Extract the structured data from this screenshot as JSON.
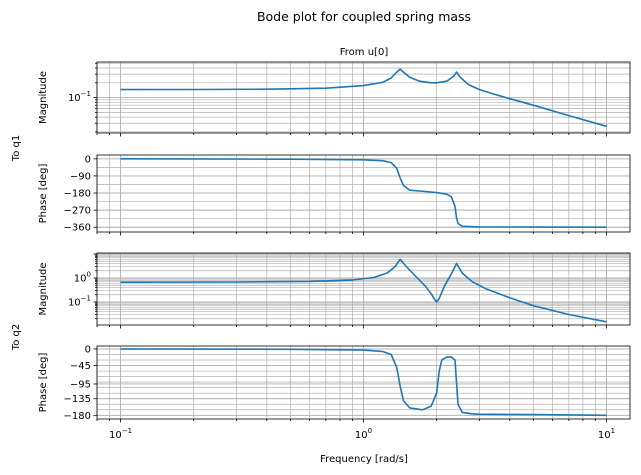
{
  "figure": {
    "title": "Bode plot for coupled spring mass",
    "column_title": "From u[0]",
    "row_labels": [
      "To q1",
      "To q2"
    ],
    "xlabel": "Frequency [rad/s]"
  },
  "colors": {
    "line": "#1f77b4",
    "grid": "#b0b0b0",
    "axes": "#000000"
  },
  "chart_data": [
    {
      "type": "line",
      "panel": "magnitude",
      "output": "To q1",
      "ylabel": "Magnitude",
      "xscale": "log",
      "yscale": "log",
      "xlim": [
        0.08,
        12.5
      ],
      "ylim": [
        0.019,
        0.53
      ],
      "yticks": [
        0.1
      ],
      "ytick_labels": [
        "10^-1"
      ],
      "grid": true,
      "series": [
        {
          "x": [
            0.1,
            0.2,
            0.4,
            0.7,
            1.0,
            1.2,
            1.3,
            1.36,
            1.414,
            1.46,
            1.55,
            1.7,
            1.9,
            2.0,
            2.2,
            2.35,
            2.414,
            2.5,
            2.7,
            3.0,
            3.5,
            4.0,
            5.0,
            7.0,
            10.0
          ],
          "y": [
            0.145,
            0.146,
            0.148,
            0.155,
            0.175,
            0.205,
            0.25,
            0.32,
            0.38,
            0.33,
            0.26,
            0.215,
            0.2,
            0.2,
            0.215,
            0.27,
            0.33,
            0.26,
            0.185,
            0.145,
            0.115,
            0.095,
            0.07,
            0.043,
            0.026
          ]
        }
      ]
    },
    {
      "type": "line",
      "panel": "phase",
      "output": "To q1",
      "ylabel": "Phase [deg]",
      "xscale": "log",
      "xlim": [
        0.08,
        12.5
      ],
      "ylim": [
        -385,
        20
      ],
      "yticks": [
        0,
        -90,
        -180,
        -270,
        -360
      ],
      "grid": true,
      "series": [
        {
          "x": [
            0.1,
            0.5,
            1.0,
            1.2,
            1.3,
            1.37,
            1.414,
            1.46,
            1.55,
            1.8,
            2.0,
            2.2,
            2.3,
            2.38,
            2.414,
            2.45,
            2.55,
            3.0,
            5.0,
            10.0
          ],
          "y": [
            0,
            -2,
            -5,
            -10,
            -20,
            -50,
            -100,
            -140,
            -165,
            -172,
            -178,
            -186,
            -200,
            -250,
            -310,
            -340,
            -355,
            -358,
            -359,
            -360
          ]
        }
      ]
    },
    {
      "type": "line",
      "panel": "magnitude",
      "output": "To q2",
      "ylabel": "Magnitude",
      "xscale": "log",
      "yscale": "log",
      "xlim": [
        0.08,
        12.5
      ],
      "ylim": [
        0.011,
        11
      ],
      "yticks": [
        1,
        0.1
      ],
      "ytick_labels": [
        "10^0",
        "10^-1"
      ],
      "grid": true,
      "series": [
        {
          "x": [
            0.1,
            0.3,
            0.6,
            0.9,
            1.1,
            1.25,
            1.35,
            1.414,
            1.5,
            1.65,
            1.8,
            1.9,
            1.96,
            2.0,
            2.05,
            2.15,
            2.3,
            2.414,
            2.55,
            2.8,
            3.2,
            4.0,
            5.0,
            7.0,
            10.0
          ],
          "y": [
            0.67,
            0.68,
            0.72,
            0.82,
            1.05,
            1.6,
            3.0,
            6.0,
            3.0,
            1.1,
            0.45,
            0.22,
            0.13,
            0.1,
            0.14,
            0.45,
            1.5,
            4.0,
            1.6,
            0.7,
            0.35,
            0.15,
            0.07,
            0.03,
            0.015
          ]
        }
      ]
    },
    {
      "type": "line",
      "panel": "phase",
      "output": "To q2",
      "ylabel": "Phase [deg]",
      "xscale": "log",
      "xlim": [
        0.08,
        12.5
      ],
      "xticks": [
        0.1,
        1,
        10
      ],
      "xtick_labels": [
        "10^-1",
        "10^0",
        "10^1"
      ],
      "ylim": [
        -190,
        8
      ],
      "yticks": [
        0,
        -45,
        -95,
        -135,
        -180
      ],
      "grid": true,
      "series": [
        {
          "x": [
            0.1,
            0.5,
            1.0,
            1.2,
            1.3,
            1.37,
            1.414,
            1.46,
            1.55,
            1.75,
            1.9,
            2.0,
            2.05,
            2.1,
            2.2,
            2.3,
            2.38,
            2.414,
            2.45,
            2.55,
            2.8,
            3.0,
            5.0,
            10.0
          ],
          "y": [
            0,
            -1,
            -3,
            -7,
            -15,
            -50,
            -100,
            -140,
            -160,
            -165,
            -155,
            -120,
            -60,
            -30,
            -22,
            -22,
            -30,
            -90,
            -150,
            -172,
            -176,
            -177,
            -178,
            -180
          ]
        }
      ]
    }
  ]
}
